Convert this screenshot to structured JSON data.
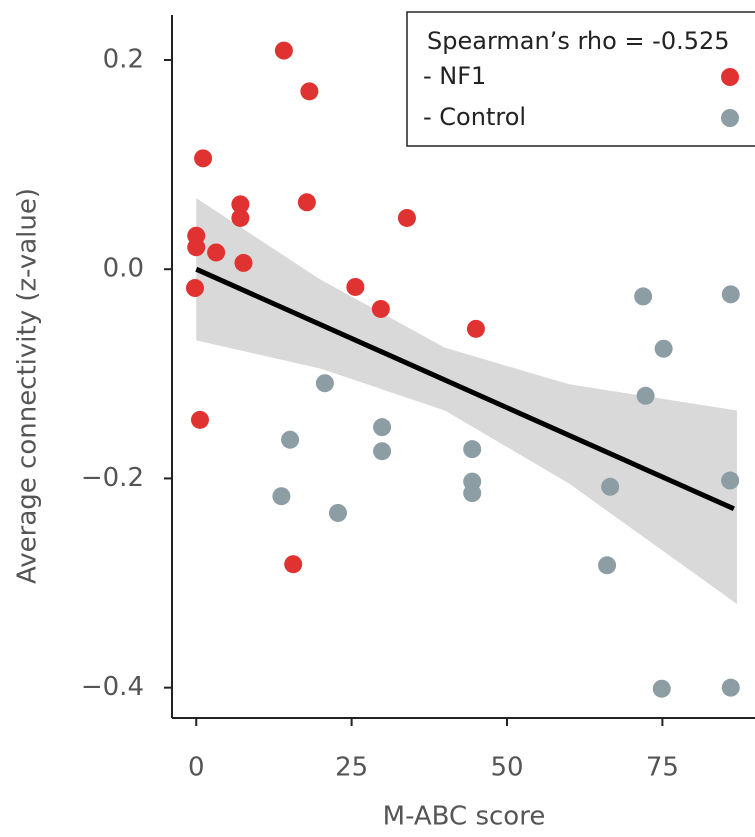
{
  "chart_data": {
    "type": "scatter",
    "x_label": "M-ABC score",
    "y_label": "Average connectivity (z-value)",
    "legend_title": "Spearman’s rho = -0.525",
    "legend_position": "upper right",
    "xlim": [
      -3.9,
      89.9
    ],
    "ylim": [
      -0.429,
      0.243
    ],
    "xticks": [
      0,
      25,
      50,
      75
    ],
    "yticks": [
      {
        "value": -0.4,
        "label": "−0.4"
      },
      {
        "value": -0.2,
        "label": "−0.2"
      },
      {
        "value": 0,
        "label": "0.0"
      },
      0.2
    ],
    "band": {
      "color": "#d9d9d9",
      "x": [
        0,
        20,
        40,
        60,
        87
      ],
      "lower": [
        -0.068,
        -0.095,
        -0.135,
        -0.205,
        -0.32
      ],
      "upper": [
        0.068,
        -0.01,
        -0.075,
        -0.11,
        -0.135
      ]
    },
    "fit": {
      "color": "#000000",
      "x": [
        0,
        86.5
      ],
      "y": [
        0,
        -0.229
      ]
    },
    "series": [
      {
        "name": "- NF1",
        "color": "#e03331",
        "x": [
          14.1,
          18.2,
          1.1,
          7.1,
          17.8,
          7.1,
          33.9,
          0,
          0,
          3.2,
          7.6,
          -0.2,
          25.6,
          29.7,
          45.0,
          0.6,
          15.6
        ],
        "values": [
          0.209,
          0.17,
          0.106,
          0.062,
          0.064,
          0.049,
          0.049,
          0.032,
          0.021,
          0.016,
          0.006,
          -0.018,
          -0.017,
          -0.038,
          -0.057,
          -0.144,
          -0.282
        ]
      },
      {
        "name": "- Control",
        "color": "#8c9da3",
        "x": [
          20.7,
          15.1,
          29.9,
          29.9,
          13.7,
          22.8,
          44.4,
          44.4,
          44.4,
          71.9,
          75.2,
          72.3,
          86.0,
          66.6,
          85.9,
          66.1,
          74.9,
          86.0
        ],
        "values": [
          -0.109,
          -0.163,
          -0.151,
          -0.174,
          -0.217,
          -0.233,
          -0.172,
          -0.203,
          -0.214,
          -0.026,
          -0.076,
          -0.121,
          -0.024,
          -0.208,
          -0.202,
          -0.283,
          -0.401,
          -0.4
        ]
      }
    ]
  }
}
